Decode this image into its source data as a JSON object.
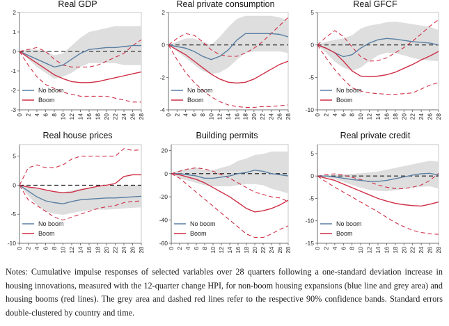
{
  "notes": "Notes: Cumulative impulse responses of selected variables over 28 quarters following a one-standard deviation increase in housing innovations, measured with the 12-quarter change HPI, for non-boom housing expansions (blue line and grey area) and housing booms (red lines). The grey area and dashed red lines refer to the respective 90% confidence bands. Standard errors double-clustered by country and time.",
  "colors": {
    "no_boom": "#5a7fa3",
    "boom": "#cf2e45",
    "band": "#dedede",
    "zero": "#111111"
  },
  "chart_data": [
    {
      "type": "line",
      "title": "Real GDP",
      "x": [
        0,
        2,
        4,
        6,
        8,
        10,
        12,
        14,
        16,
        18,
        20,
        22,
        24,
        26,
        28
      ],
      "ylim": [
        -3,
        2
      ],
      "yticks": [
        -3,
        -2,
        -1,
        0,
        1,
        2
      ],
      "legend": {
        "position": "bottom-left",
        "entries": [
          "No boom",
          "Boom"
        ]
      },
      "series": [
        {
          "name": "No boom",
          "values": [
            0,
            -0.2,
            -0.4,
            -0.6,
            -0.8,
            -0.7,
            -0.4,
            -0.1,
            0.1,
            0.15,
            0.2,
            0.2,
            0.25,
            0.3,
            0.3
          ]
        },
        {
          "name": "Boom",
          "values": [
            0,
            -0.3,
            -0.6,
            -0.9,
            -1.2,
            -1.4,
            -1.55,
            -1.6,
            -1.6,
            -1.55,
            -1.45,
            -1.35,
            -1.25,
            -1.15,
            -1.05
          ]
        }
      ],
      "no_boom_band": {
        "upper": [
          0,
          0.1,
          0.1,
          0,
          -0.2,
          -0.1,
          0.3,
          0.7,
          1.0,
          1.1,
          1.2,
          1.3,
          1.3,
          1.3,
          1.3
        ],
        "lower": [
          0,
          -0.4,
          -0.8,
          -1.1,
          -1.4,
          -1.3,
          -1.1,
          -0.8,
          -0.6,
          -0.6,
          -0.6,
          -0.6,
          -0.7,
          -0.7,
          -0.7
        ]
      },
      "boom_band": {
        "upper": [
          0,
          0.1,
          0.2,
          0,
          -0.4,
          -0.7,
          -0.8,
          -0.8,
          -0.8,
          -0.7,
          -0.5,
          -0.3,
          -0.1,
          0.3,
          0.6
        ],
        "lower": [
          0,
          -0.7,
          -1.3,
          -1.7,
          -1.9,
          -2.1,
          -2.2,
          -2.3,
          -2.3,
          -2.3,
          -2.3,
          -2.4,
          -2.5,
          -2.6,
          -2.6
        ]
      }
    },
    {
      "type": "line",
      "title": "Real private consumption",
      "x": [
        0,
        2,
        4,
        6,
        8,
        10,
        12,
        14,
        16,
        18,
        20,
        22,
        24,
        26,
        28
      ],
      "ylim": [
        -4,
        2
      ],
      "yticks": [
        -4,
        -2,
        0,
        2
      ],
      "legend": {
        "position": "bottom-left",
        "entries": [
          "No boom",
          "Boom"
        ]
      },
      "series": [
        {
          "name": "No boom",
          "values": [
            0,
            -0.1,
            -0.2,
            -0.4,
            -0.7,
            -0.9,
            -0.7,
            -0.3,
            0.3,
            0.7,
            0.7,
            0.7,
            0.7,
            0.65,
            0.5
          ]
        },
        {
          "name": "Boom",
          "values": [
            0,
            -0.3,
            -0.6,
            -1.0,
            -1.4,
            -1.8,
            -2.1,
            -2.3,
            -2.35,
            -2.3,
            -2.1,
            -1.8,
            -1.5,
            -1.2,
            -1.0
          ]
        }
      ],
      "no_boom_band": {
        "upper": [
          0,
          0.2,
          0.4,
          0.4,
          0.2,
          0,
          0.5,
          1.1,
          1.6,
          1.8,
          1.8,
          1.8,
          1.8,
          1.7,
          1.5
        ],
        "lower": [
          0,
          -0.4,
          -0.8,
          -1.2,
          -1.6,
          -1.8,
          -1.7,
          -1.4,
          -0.9,
          -0.5,
          -0.4,
          -0.4,
          -0.4,
          -0.4,
          -0.5
        ]
      },
      "boom_band": {
        "upper": [
          0,
          0.4,
          0.7,
          0.6,
          0.2,
          -0.3,
          -0.6,
          -0.7,
          -0.7,
          -0.5,
          -0.2,
          0.2,
          0.7,
          1.2,
          1.7
        ],
        "lower": [
          0,
          -0.9,
          -1.7,
          -2.3,
          -2.8,
          -3.2,
          -3.5,
          -3.7,
          -3.8,
          -3.85,
          -3.85,
          -3.8,
          -3.8,
          -3.75,
          -3.7
        ]
      }
    },
    {
      "type": "line",
      "title": "Real GFCF",
      "x": [
        0,
        2,
        4,
        6,
        8,
        10,
        12,
        14,
        16,
        18,
        20,
        22,
        24,
        26,
        28
      ],
      "ylim": [
        -10,
        5
      ],
      "yticks": [
        -10,
        -5,
        0,
        5
      ],
      "legend": {
        "position": "bottom-left",
        "entries": [
          "No boom",
          "Boom"
        ]
      },
      "series": [
        {
          "name": "No boom",
          "values": [
            0,
            -0.5,
            -1.2,
            -1.8,
            -1.5,
            -0.5,
            0.3,
            0.8,
            1.0,
            0.9,
            0.7,
            0.5,
            0.4,
            0.3,
            0
          ]
        },
        {
          "name": "Boom",
          "values": [
            0,
            -0.5,
            -1.2,
            -2.5,
            -4.0,
            -4.8,
            -4.9,
            -4.8,
            -4.6,
            -4.2,
            -3.6,
            -3.0,
            -2.3,
            -1.7,
            -1.0
          ]
        }
      ],
      "no_boom_band": {
        "upper": [
          0,
          0.5,
          0.8,
          1.0,
          1.5,
          2.5,
          3.0,
          3.2,
          3.5,
          3.6,
          3.4,
          3.2,
          3.0,
          2.8,
          2.3
        ],
        "lower": [
          0,
          -1.2,
          -2.6,
          -3.5,
          -4.0,
          -3.5,
          -2.5,
          -1.6,
          -1.2,
          -1.3,
          -1.6,
          -2.0,
          -2.3,
          -2.4,
          -2.5
        ]
      },
      "boom_band": {
        "upper": [
          0,
          1.2,
          2.2,
          1.3,
          -0.3,
          -1.8,
          -2.5,
          -2.4,
          -2.0,
          -1.2,
          -0.4,
          0.6,
          1.7,
          2.9,
          3.9
        ],
        "lower": [
          0,
          -2.0,
          -3.8,
          -5.3,
          -6.6,
          -7.1,
          -7.4,
          -7.5,
          -7.6,
          -7.6,
          -7.5,
          -7.4,
          -6.8,
          -6.2,
          -5.8
        ]
      }
    },
    {
      "type": "line",
      "title": "Real house prices",
      "x": [
        0,
        2,
        4,
        6,
        8,
        10,
        12,
        14,
        16,
        18,
        20,
        22,
        24,
        26,
        28
      ],
      "ylim": [
        -10,
        7
      ],
      "yticks": [
        -10,
        -5,
        0,
        5
      ],
      "legend": {
        "position": "bottom-left",
        "entries": [
          "No boom",
          "Boom"
        ]
      },
      "series": [
        {
          "name": "No boom",
          "values": [
            0,
            -1.0,
            -2.0,
            -2.7,
            -3.0,
            -3.2,
            -2.8,
            -2.5,
            -2.4,
            -2.3,
            -2.2,
            -2.2,
            -2.1,
            -2.0,
            -1.9
          ]
        },
        {
          "name": "Boom",
          "values": [
            0,
            -0.3,
            -0.5,
            -0.8,
            -1.1,
            -1.3,
            -1.2,
            -0.8,
            -0.5,
            -0.2,
            0,
            0.3,
            1.5,
            1.8,
            1.8
          ]
        }
      ],
      "no_boom_band": {
        "upper": [
          0,
          -0.3,
          -0.6,
          -0.9,
          -1.1,
          -1.2,
          -0.9,
          -0.6,
          -0.4,
          -0.3,
          -0.2,
          -0.1,
          0,
          0,
          0
        ],
        "lower": [
          0,
          -1.8,
          -3.4,
          -4.5,
          -4.9,
          -5.1,
          -4.8,
          -4.5,
          -4.3,
          -4.2,
          -4.2,
          -4.1,
          -4.0,
          -3.9,
          -3.8
        ]
      },
      "boom_band": {
        "upper": [
          0,
          3.0,
          3.5,
          3.0,
          3.0,
          3.5,
          4.5,
          5.0,
          5.0,
          5.0,
          5.0,
          5.0,
          6.3,
          6.0,
          6.1
        ],
        "lower": [
          0,
          -2.5,
          -3.5,
          -4.5,
          -5.5,
          -6.0,
          -5.5,
          -5.0,
          -4.5,
          -4.0,
          -3.7,
          -3.5,
          -3.0,
          -2.8,
          -2.7
        ]
      }
    },
    {
      "type": "line",
      "title": "Building permits",
      "x": [
        0,
        2,
        4,
        6,
        8,
        10,
        12,
        14,
        16,
        18,
        20,
        22,
        24,
        26,
        28
      ],
      "ylim": [
        -60,
        25
      ],
      "yticks": [
        -60,
        -40,
        -20,
        0,
        20
      ],
      "legend": {
        "position": "bottom-left",
        "entries": [
          "No boom",
          "Boom"
        ]
      },
      "series": [
        {
          "name": "No boom",
          "values": [
            0,
            0,
            -1,
            -2,
            -4,
            -4,
            -3,
            -2,
            0,
            1,
            3,
            2,
            0,
            -1,
            -2
          ]
        },
        {
          "name": "Boom",
          "values": [
            0,
            -1,
            -3,
            -5,
            -8,
            -12,
            -16,
            -20,
            -25,
            -30,
            -33,
            -32,
            -30,
            -27,
            -23
          ]
        }
      ],
      "no_boom_band": {
        "upper": [
          0,
          3,
          4,
          5,
          3,
          3,
          5,
          7,
          11,
          13,
          16,
          17,
          19,
          19,
          19
        ],
        "lower": [
          0,
          -4,
          -6,
          -8,
          -10,
          -11,
          -11,
          -11,
          -10,
          -9,
          -9,
          -10,
          -13,
          -15,
          -17
        ]
      },
      "boom_band": {
        "upper": [
          0,
          2,
          4,
          5,
          4,
          2,
          -1,
          -4,
          -8,
          -12,
          -16,
          -18,
          -20,
          -21,
          -24
        ],
        "lower": [
          0,
          -4,
          -10,
          -16,
          -22,
          -28,
          -34,
          -40,
          -46,
          -52,
          -55,
          -55,
          -52,
          -48,
          -45
        ]
      }
    },
    {
      "type": "line",
      "title": "Real private credit",
      "x": [
        0,
        2,
        4,
        6,
        8,
        10,
        12,
        14,
        16,
        18,
        20,
        22,
        24,
        26,
        28
      ],
      "ylim": [
        -15,
        7
      ],
      "yticks": [
        -15,
        -10,
        -5,
        0,
        5
      ],
      "legend": {
        "position": "bottom-left",
        "entries": [
          "No boom",
          "Boom"
        ]
      },
      "series": [
        {
          "name": "No boom",
          "values": [
            0,
            0,
            -0.2,
            -0.5,
            -0.8,
            -1.0,
            -1.2,
            -1.2,
            -1.0,
            -0.6,
            -0.2,
            0.2,
            0.5,
            0.6,
            0.2
          ]
        },
        {
          "name": "Boom",
          "values": [
            0,
            -0.5,
            -1.0,
            -1.8,
            -2.6,
            -3.4,
            -4.2,
            -5.0,
            -5.6,
            -6.1,
            -6.4,
            -6.6,
            -6.7,
            -6.3,
            -5.8
          ]
        }
      ],
      "no_boom_band": {
        "upper": [
          0,
          0.2,
          0.3,
          0.4,
          0.5,
          0.6,
          0.8,
          1.0,
          1.4,
          1.8,
          2.2,
          2.6,
          3.0,
          3.4,
          3.2
        ],
        "lower": [
          0,
          -0.3,
          -0.7,
          -1.3,
          -2.0,
          -2.6,
          -3.1,
          -3.3,
          -3.4,
          -3.2,
          -2.9,
          -2.6,
          -2.4,
          -2.3,
          -2.8
        ]
      },
      "boom_band": {
        "upper": [
          0,
          0.3,
          0.5,
          0.2,
          -0.3,
          -0.8,
          -1.3,
          -2.0,
          -2.5,
          -2.8,
          -2.8,
          -2.5,
          -2.0,
          -1.0,
          0.6
        ],
        "lower": [
          0,
          -1.3,
          -2.5,
          -3.6,
          -4.7,
          -5.8,
          -6.9,
          -8.0,
          -9.2,
          -10.4,
          -11.3,
          -12.1,
          -12.6,
          -12.9,
          -13.0
        ]
      }
    }
  ]
}
